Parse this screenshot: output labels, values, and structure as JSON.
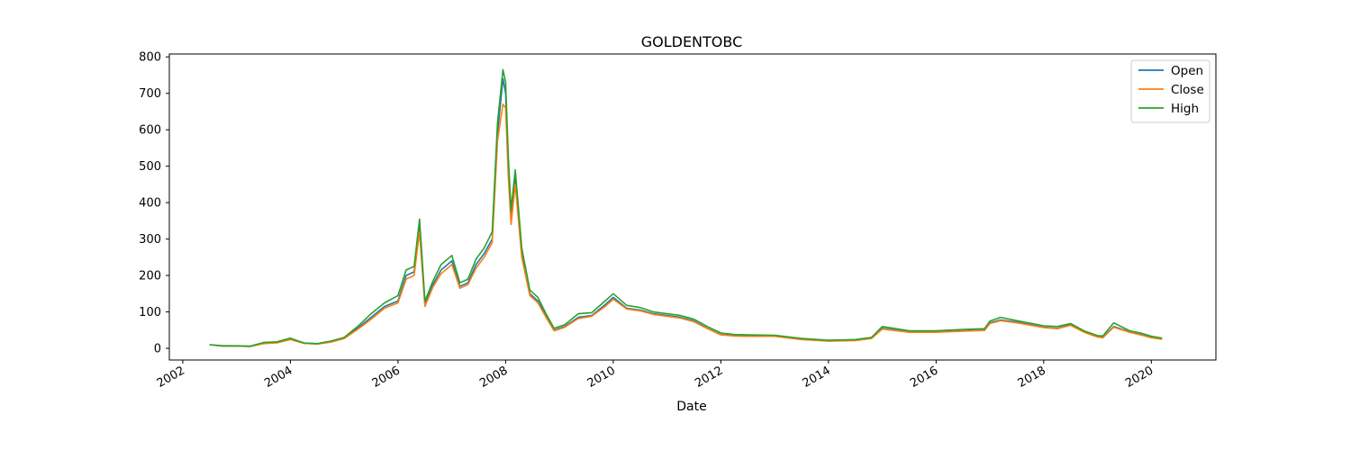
{
  "chart_data": {
    "type": "line",
    "title": "GOLDENTOBC",
    "xlabel": "Date",
    "ylabel": "",
    "xlim": [
      2001.75,
      2021.2
    ],
    "ylim": [
      -32,
      808
    ],
    "grid": false,
    "legend_position": "top-right",
    "x_ticks": [
      2002,
      2004,
      2006,
      2008,
      2010,
      2012,
      2014,
      2016,
      2018,
      2020
    ],
    "x_tick_labels": [
      "2002",
      "2004",
      "2006",
      "2008",
      "2010",
      "2012",
      "2014",
      "2016",
      "2018",
      "2020"
    ],
    "y_ticks": [
      0,
      100,
      200,
      300,
      400,
      500,
      600,
      700,
      800
    ],
    "y_tick_labels": [
      "0",
      "100",
      "200",
      "300",
      "400",
      "500",
      "600",
      "700",
      "800"
    ],
    "x": [
      2002.5,
      2002.75,
      2003.0,
      2003.25,
      2003.5,
      2003.75,
      2004.0,
      2004.25,
      2004.5,
      2004.75,
      2005.0,
      2005.25,
      2005.5,
      2005.75,
      2006.0,
      2006.15,
      2006.3,
      2006.4,
      2006.5,
      2006.65,
      2006.8,
      2007.0,
      2007.15,
      2007.3,
      2007.45,
      2007.6,
      2007.75,
      2007.85,
      2007.95,
      2008.0,
      2008.05,
      2008.1,
      2008.18,
      2008.3,
      2008.45,
      2008.6,
      2008.75,
      2008.9,
      2009.1,
      2009.35,
      2009.6,
      2009.85,
      2010.0,
      2010.25,
      2010.5,
      2010.75,
      2011.0,
      2011.25,
      2011.5,
      2011.75,
      2012.0,
      2012.25,
      2012.5,
      2013.0,
      2013.5,
      2014.0,
      2014.5,
      2014.8,
      2015.0,
      2015.5,
      2016.0,
      2016.5,
      2016.9,
      2017.0,
      2017.2,
      2017.5,
      2018.0,
      2018.25,
      2018.5,
      2018.75,
      2019.0,
      2019.1,
      2019.3,
      2019.6,
      2019.8,
      2020.0,
      2020.2
    ],
    "series": [
      {
        "name": "Open",
        "color": "#1f77b4",
        "values": [
          10,
          6,
          6,
          5,
          14,
          16,
          25,
          14,
          12,
          18,
          28,
          55,
          85,
          115,
          130,
          200,
          210,
          330,
          120,
          175,
          215,
          240,
          170,
          180,
          230,
          260,
          300,
          590,
          740,
          700,
          500,
          360,
          470,
          260,
          150,
          130,
          90,
          50,
          60,
          85,
          90,
          120,
          140,
          110,
          105,
          95,
          90,
          85,
          75,
          55,
          38,
          35,
          34,
          34,
          25,
          20,
          22,
          28,
          55,
          45,
          45,
          48,
          50,
          70,
          78,
          72,
          58,
          55,
          65,
          45,
          32,
          30,
          60,
          45,
          38,
          30,
          26
        ]
      },
      {
        "name": "Close",
        "color": "#ff7f0e",
        "values": [
          10,
          6,
          6,
          5,
          13,
          15,
          24,
          14,
          12,
          17,
          27,
          52,
          80,
          110,
          125,
          190,
          200,
          320,
          115,
          168,
          205,
          230,
          165,
          175,
          220,
          250,
          290,
          570,
          670,
          660,
          470,
          340,
          450,
          250,
          145,
          125,
          85,
          48,
          58,
          82,
          88,
          115,
          135,
          108,
          103,
          93,
          88,
          83,
          73,
          54,
          37,
          34,
          33,
          33,
          24,
          20,
          21,
          27,
          53,
          44,
          44,
          47,
          49,
          68,
          76,
          70,
          57,
          54,
          63,
          44,
          31,
          29,
          58,
          44,
          37,
          29,
          25
        ]
      },
      {
        "name": "High",
        "color": "#2ca02c",
        "values": [
          10,
          7,
          7,
          6,
          16,
          18,
          28,
          15,
          13,
          20,
          30,
          60,
          95,
          125,
          145,
          215,
          225,
          355,
          130,
          185,
          230,
          255,
          180,
          190,
          245,
          275,
          320,
          620,
          765,
          730,
          525,
          380,
          490,
          275,
          160,
          140,
          95,
          55,
          65,
          95,
          98,
          130,
          150,
          118,
          112,
          100,
          95,
          90,
          80,
          60,
          42,
          38,
          37,
          36,
          27,
          22,
          24,
          30,
          60,
          48,
          48,
          52,
          54,
          75,
          85,
          76,
          62,
          60,
          68,
          48,
          35,
          34,
          70,
          48,
          42,
          33,
          28
        ]
      }
    ]
  }
}
